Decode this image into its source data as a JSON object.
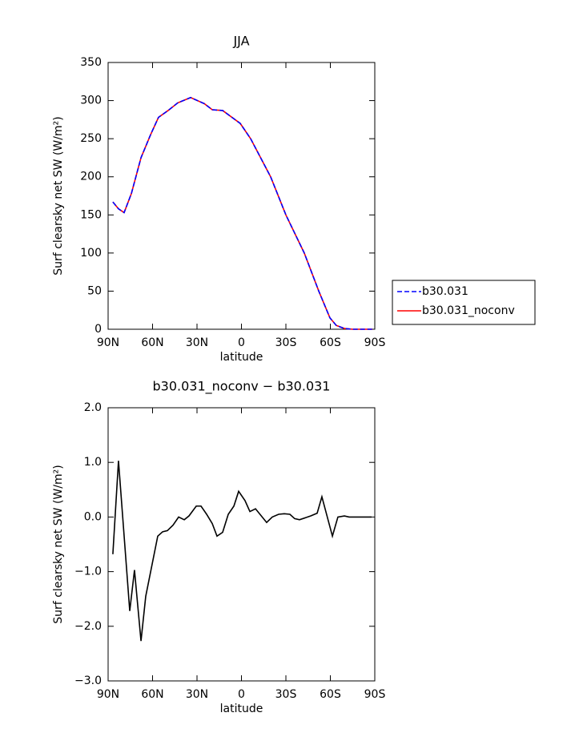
{
  "chart_data": [
    {
      "type": "line",
      "title": "JJA",
      "xlabel": "latitude",
      "ylabel": "Surf clearsky net SW (W/m²)",
      "xlim": [
        90,
        -90
      ],
      "ylim": [
        0,
        350
      ],
      "xticks": [
        {
          "value": 90,
          "label": "90N"
        },
        {
          "value": 60,
          "label": "60N"
        },
        {
          "value": 30,
          "label": "30N"
        },
        0,
        {
          "value": -30,
          "label": "30S"
        },
        {
          "value": -60,
          "label": "60S"
        },
        {
          "value": -90,
          "label": "90S"
        }
      ],
      "yticks": [
        0,
        50,
        100,
        150,
        200,
        250,
        300,
        350
      ],
      "legend": "right",
      "x": [
        86.8,
        83.0,
        79.2,
        74.3,
        67.8,
        61.4,
        56.0,
        49.5,
        43.0,
        34.3,
        25.1,
        19.7,
        12.7,
        0.8,
        -6.2,
        -19.7,
        -30.0,
        -42.4,
        -52.2,
        -59.7,
        -64.0,
        -69.5,
        -74.9,
        -88.4
      ],
      "series": [
        {
          "name": "b30.031_noconv",
          "color": "#ff0000",
          "dashed": false,
          "values": [
            167,
            158,
            153,
            178,
            225,
            255,
            278,
            287,
            297,
            304,
            296,
            288,
            287,
            270,
            250,
            200,
            150,
            100,
            50,
            15,
            5,
            1,
            0,
            0
          ]
        },
        {
          "name": "b30.031",
          "color": "#0000ff",
          "dashed": true,
          "values": [
            167,
            158,
            153,
            178,
            225,
            255,
            278,
            287,
            297,
            304,
            296,
            288,
            287,
            270,
            250,
            200,
            150,
            100,
            50,
            15,
            5,
            1,
            0,
            0
          ]
        }
      ]
    },
    {
      "type": "line",
      "title": "b30.031_noconv − b30.031",
      "xlabel": "latitude",
      "ylabel": "Surf clearsky net SW (W/m²)",
      "xlim": [
        90,
        -90
      ],
      "ylim": [
        -3,
        2
      ],
      "xticks": [
        {
          "value": 90,
          "label": "90N"
        },
        {
          "value": 60,
          "label": "60N"
        },
        {
          "value": 30,
          "label": "30N"
        },
        0,
        {
          "value": -30,
          "label": "30S"
        },
        {
          "value": -60,
          "label": "60S"
        },
        {
          "value": -90,
          "label": "90S"
        }
      ],
      "yticks": [
        {
          "value": -3,
          "label": "−3.0"
        },
        {
          "value": -2,
          "label": "−2.0"
        },
        {
          "value": -1,
          "label": "−1.0"
        },
        {
          "value": 0,
          "label": "0.0"
        },
        {
          "value": 1,
          "label": "1.0"
        },
        {
          "value": 2,
          "label": "2.0"
        }
      ],
      "x": [
        86.8,
        83.0,
        75.4,
        72.2,
        67.8,
        64.6,
        56.5,
        53.2,
        50.0,
        46.2,
        42.4,
        38.6,
        35.4,
        30.5,
        27.3,
        23.5,
        19.7,
        16.5,
        12.7,
        8.9,
        5.1,
        1.9,
        -2.4,
        -5.7,
        -9.5,
        -17.0,
        -20.8,
        -25.1,
        -28.9,
        -32.7,
        -35.9,
        -39.2,
        -46.8,
        -51.1,
        -54.3,
        -61.4,
        -65.1,
        -69.5,
        -72.7,
        -80.3,
        -87.8
      ],
      "series": [
        {
          "color": "#000000",
          "dashed": false,
          "values": [
            -0.68,
            1.03,
            -1.72,
            -0.97,
            -2.27,
            -1.45,
            -0.35,
            -0.27,
            -0.25,
            -0.15,
            0.0,
            -0.05,
            0.02,
            0.2,
            0.2,
            0.05,
            -0.12,
            -0.35,
            -0.28,
            0.05,
            0.2,
            0.47,
            0.3,
            0.1,
            0.15,
            -0.1,
            0.0,
            0.05,
            0.06,
            0.05,
            -0.03,
            -0.05,
            0.02,
            0.07,
            0.37,
            -0.35,
            0.0,
            0.02,
            0.0,
            0.0,
            0.0
          ]
        }
      ]
    }
  ]
}
